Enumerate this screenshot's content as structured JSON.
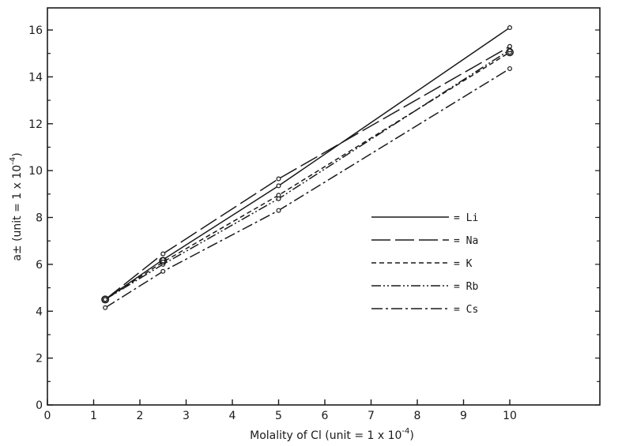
{
  "chart_data": {
    "type": "line",
    "xlabel": "Molality of Cl (unit = 1 x 10",
    "xlabel_exp": "-4",
    "xlabel_close": ")",
    "ylabel": "a± (unit = 1 x 10",
    "ylabel_exp": "-4",
    "ylabel_close": ")",
    "x_ticks": [
      "0",
      "1",
      "2",
      "3",
      "4",
      "5",
      "6",
      "7",
      "8",
      "9",
      "10"
    ],
    "y_ticks": [
      "0",
      "2",
      "4",
      "6",
      "8",
      "10",
      "12",
      "14",
      "16"
    ],
    "xlim": [
      0,
      10
    ],
    "ylim": [
      0,
      17
    ],
    "grid": false,
    "legend_position": "center-right",
    "series": [
      {
        "name": "= Li",
        "x": [
          1.25,
          2.5,
          5,
          10
        ],
        "y": [
          4.5,
          6.2,
          9.35,
          16.1
        ],
        "dash": "none"
      },
      {
        "name": "= Na",
        "x": [
          1.25,
          2.5,
          5,
          10
        ],
        "y": [
          4.5,
          6.45,
          9.65,
          15.3
        ],
        "dash": "24,6"
      },
      {
        "name": "= K",
        "x": [
          1.25,
          2.5,
          5,
          10
        ],
        "y": [
          4.5,
          6.1,
          8.95,
          15.05
        ],
        "dash": "6,4"
      },
      {
        "name": "= Rb",
        "x": [
          1.25,
          2.5,
          5,
          10
        ],
        "y": [
          4.5,
          6.0,
          8.8,
          15.15
        ],
        "dash": "12,3,2,3,2,3"
      },
      {
        "name": "= Cs",
        "x": [
          1.25,
          2.5,
          5,
          10
        ],
        "y": [
          4.15,
          5.7,
          8.3,
          14.35
        ],
        "dash": "14,4,3,4"
      }
    ]
  }
}
